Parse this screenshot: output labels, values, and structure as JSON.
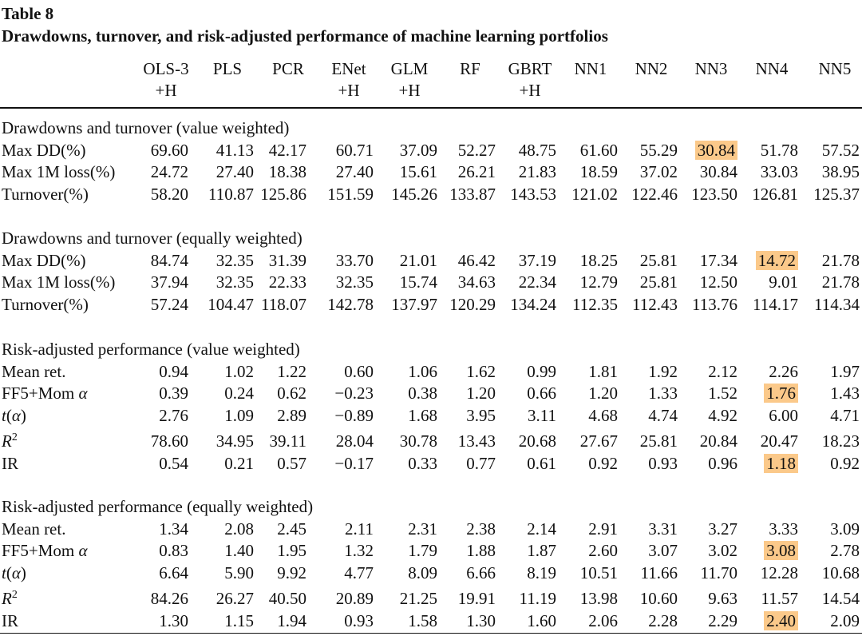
{
  "table": {
    "label": "Table 8",
    "caption": "Drawdowns, turnover, and risk-adjusted performance of machine learning portfolios",
    "columns": [
      {
        "line1": "OLS-3",
        "line2": "+H"
      },
      {
        "line1": "PLS",
        "line2": ""
      },
      {
        "line1": "PCR",
        "line2": ""
      },
      {
        "line1": "ENet",
        "line2": "+H"
      },
      {
        "line1": "GLM",
        "line2": "+H"
      },
      {
        "line1": "RF",
        "line2": ""
      },
      {
        "line1": "GBRT",
        "line2": "+H"
      },
      {
        "line1": "NN1",
        "line2": ""
      },
      {
        "line1": "NN2",
        "line2": ""
      },
      {
        "line1": "NN3",
        "line2": ""
      },
      {
        "line1": "NN4",
        "line2": ""
      },
      {
        "line1": "NN5",
        "line2": ""
      }
    ],
    "highlight_color": "#fbc98a",
    "sections": [
      {
        "title": "Drawdowns and turnover (value weighted)",
        "rows": [
          {
            "label": "Max DD(%)",
            "values": [
              "69.60",
              "41.13",
              "42.17",
              "60.71",
              "37.09",
              "52.27",
              "48.75",
              "61.60",
              "55.29",
              "30.84",
              "51.78",
              "57.52"
            ],
            "highlight": 9
          },
          {
            "label": "Max 1M loss(%)",
            "values": [
              "24.72",
              "27.40",
              "18.38",
              "27.40",
              "15.61",
              "26.21",
              "21.83",
              "18.59",
              "37.02",
              "30.84",
              "33.03",
              "38.95"
            ],
            "highlight": -1
          },
          {
            "label": "Turnover(%)",
            "values": [
              "58.20",
              "110.87",
              "125.86",
              "151.59",
              "145.26",
              "133.87",
              "143.53",
              "121.02",
              "122.46",
              "123.50",
              "126.81",
              "125.37"
            ],
            "highlight": -1
          }
        ]
      },
      {
        "title": "Drawdowns and turnover (equally weighted)",
        "rows": [
          {
            "label": "Max DD(%)",
            "values": [
              "84.74",
              "32.35",
              "31.39",
              "33.70",
              "21.01",
              "46.42",
              "37.19",
              "18.25",
              "25.81",
              "17.34",
              "14.72",
              "21.78"
            ],
            "highlight": 10
          },
          {
            "label": "Max 1M loss(%)",
            "values": [
              "37.94",
              "32.35",
              "22.33",
              "32.35",
              "15.74",
              "34.63",
              "22.34",
              "12.79",
              "25.81",
              "12.50",
              "9.01",
              "21.78"
            ],
            "highlight": -1
          },
          {
            "label": "Turnover(%)",
            "values": [
              "57.24",
              "104.47",
              "118.07",
              "142.78",
              "137.97",
              "120.29",
              "134.24",
              "112.35",
              "112.43",
              "113.76",
              "114.17",
              "114.34"
            ],
            "highlight": -1
          }
        ]
      },
      {
        "title": "Risk-adjusted performance (value weighted)",
        "rows": [
          {
            "label": "Mean ret.",
            "values": [
              "0.94",
              "1.02",
              "1.22",
              "0.60",
              "1.06",
              "1.62",
              "0.99",
              "1.81",
              "1.92",
              "2.12",
              "2.26",
              "1.97"
            ],
            "highlight": -1
          },
          {
            "label": "FF5+Mom α",
            "values": [
              "0.39",
              "0.24",
              "0.62",
              "−0.23",
              "0.38",
              "1.20",
              "0.66",
              "1.20",
              "1.33",
              "1.52",
              "1.76",
              "1.43"
            ],
            "highlight": 10
          },
          {
            "label": "t(α)",
            "values": [
              "2.76",
              "1.09",
              "2.89",
              "−0.89",
              "1.68",
              "3.95",
              "3.11",
              "4.68",
              "4.74",
              "4.92",
              "6.00",
              "4.71"
            ],
            "highlight": -1
          },
          {
            "label": "R2",
            "values": [
              "78.60",
              "34.95",
              "39.11",
              "28.04",
              "30.78",
              "13.43",
              "20.68",
              "27.67",
              "25.81",
              "20.84",
              "20.47",
              "18.23"
            ],
            "highlight": -1
          },
          {
            "label": "IR",
            "values": [
              "0.54",
              "0.21",
              "0.57",
              "−0.17",
              "0.33",
              "0.77",
              "0.61",
              "0.92",
              "0.93",
              "0.96",
              "1.18",
              "0.92"
            ],
            "highlight": 10
          }
        ]
      },
      {
        "title": "Risk-adjusted performance (equally weighted)",
        "rows": [
          {
            "label": "Mean ret.",
            "values": [
              "1.34",
              "2.08",
              "2.45",
              "2.11",
              "2.31",
              "2.38",
              "2.14",
              "2.91",
              "3.31",
              "3.27",
              "3.33",
              "3.09"
            ],
            "highlight": -1
          },
          {
            "label": "FF5+Mom α",
            "values": [
              "0.83",
              "1.40",
              "1.95",
              "1.32",
              "1.79",
              "1.88",
              "1.87",
              "2.60",
              "3.07",
              "3.02",
              "3.08",
              "2.78"
            ],
            "highlight": 10
          },
          {
            "label": "t(α)",
            "values": [
              "6.64",
              "5.90",
              "9.92",
              "4.77",
              "8.09",
              "6.66",
              "8.19",
              "10.51",
              "11.66",
              "11.70",
              "12.28",
              "10.68"
            ],
            "highlight": -1
          },
          {
            "label": "R2",
            "values": [
              "84.26",
              "26.27",
              "40.50",
              "20.89",
              "21.25",
              "19.91",
              "11.19",
              "13.98",
              "10.60",
              "9.63",
              "11.57",
              "14.54"
            ],
            "highlight": -1
          },
          {
            "label": "IR",
            "values": [
              "1.30",
              "1.15",
              "1.94",
              "0.93",
              "1.58",
              "1.30",
              "1.60",
              "2.06",
              "2.28",
              "2.29",
              "2.40",
              "2.09"
            ],
            "highlight": 10
          }
        ]
      }
    ]
  }
}
